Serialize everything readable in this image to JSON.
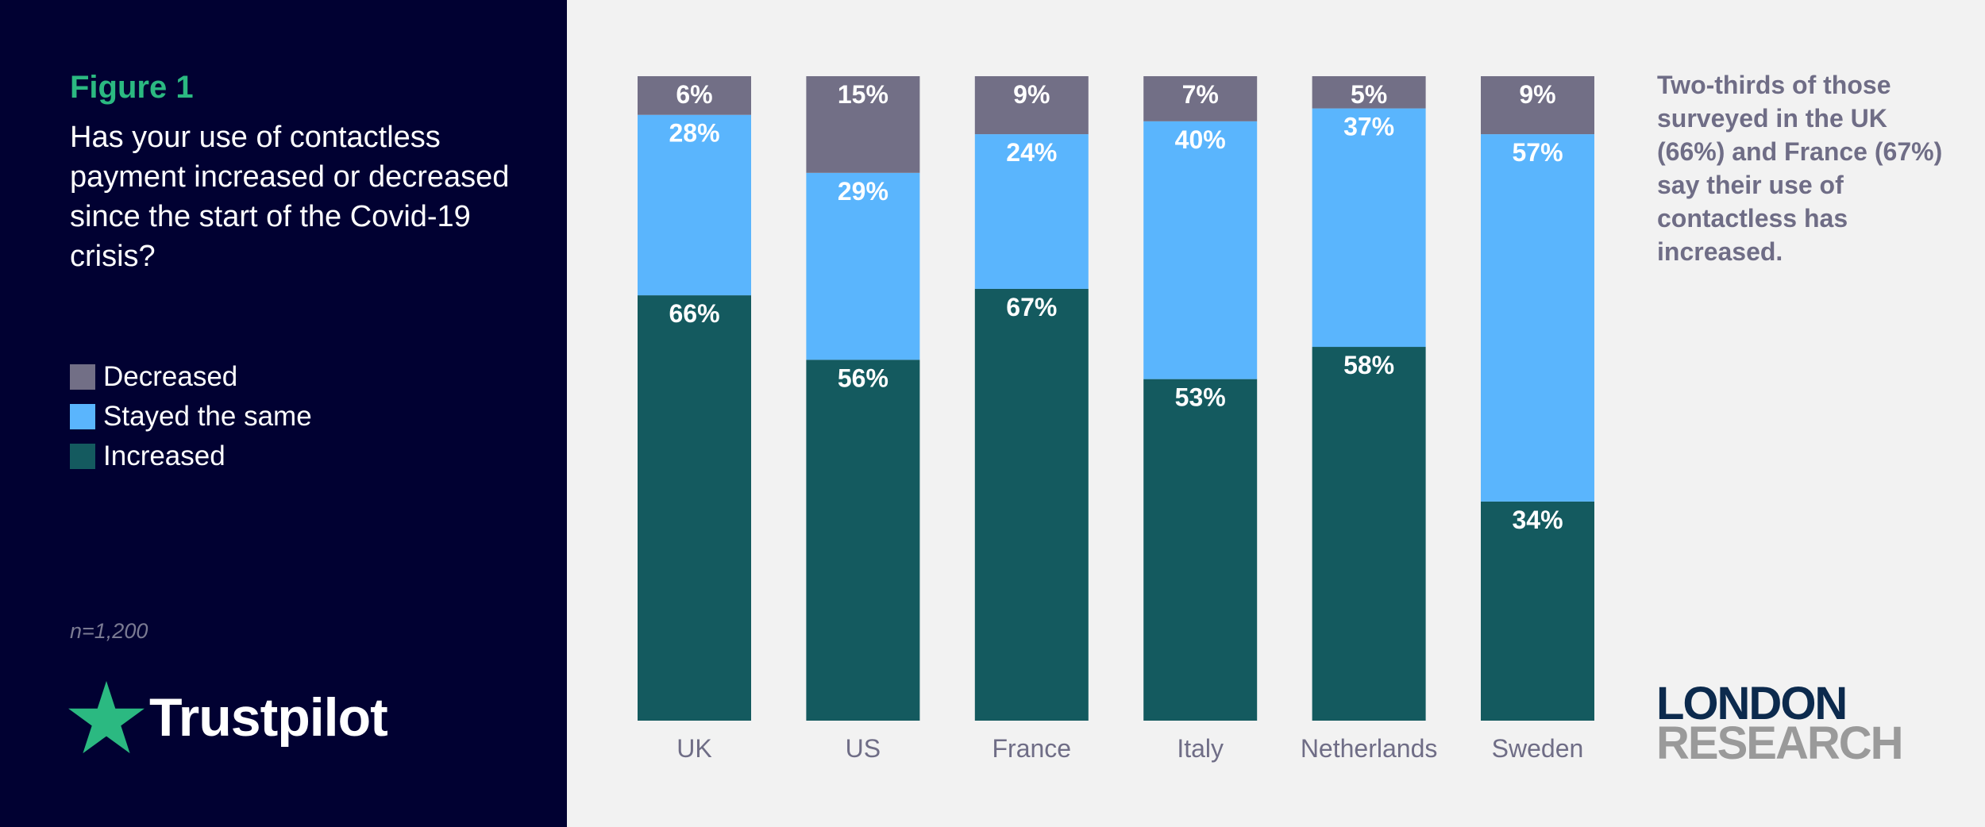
{
  "figure_label": "Figure 1",
  "question": "Has your use of contactless payment increased or decreased since the start of the Covid-19 crisis?",
  "legend": [
    {
      "label": "Decreased",
      "color": "#726f86"
    },
    {
      "label": "Stayed the same",
      "color": "#5ab5fd"
    },
    {
      "label": "Increased",
      "color": "#145a5f"
    }
  ],
  "sample_size": "n=1,200",
  "brand": {
    "name": "Trustpilot",
    "icon": "star-icon",
    "star_color": "#2bb981"
  },
  "annotation": "Two-thirds of those surveyed in the UK (66%) and France (67%) say their use of contactless has increased.",
  "publisher": {
    "line1": "LONDON",
    "line2": "RESEARCH"
  },
  "chart_data": {
    "type": "bar",
    "stacked": true,
    "categories": [
      "UK",
      "US",
      "France",
      "Italy",
      "Netherlands",
      "Sweden"
    ],
    "series": [
      {
        "name": "Increased",
        "color": "#145a5f",
        "values": [
          66,
          56,
          67,
          53,
          58,
          34
        ]
      },
      {
        "name": "Stayed the same",
        "color": "#5ab5fd",
        "values": [
          28,
          29,
          24,
          40,
          37,
          57
        ]
      },
      {
        "name": "Decreased",
        "color": "#726f86",
        "values": [
          6,
          15,
          9,
          7,
          5,
          9
        ]
      }
    ],
    "value_suffix": "%",
    "ylim": [
      0,
      100
    ],
    "grid": false,
    "legend_position": "left"
  }
}
